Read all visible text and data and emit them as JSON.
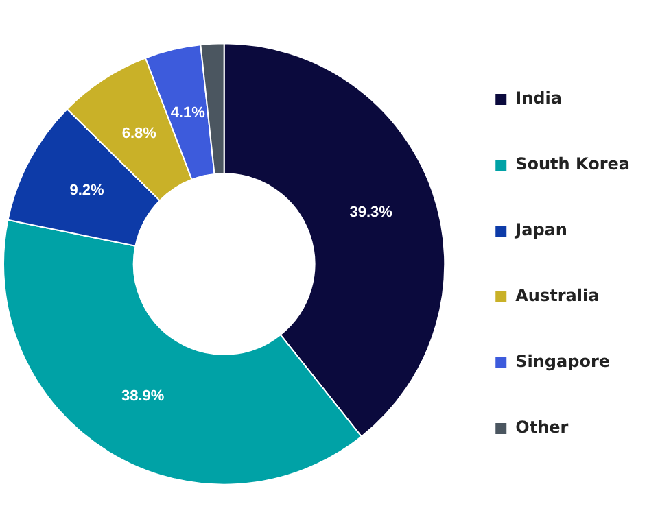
{
  "chart_data": {
    "type": "donut",
    "categories": [
      "India",
      "South Korea",
      "Japan",
      "Australia",
      "Singapore",
      "Other"
    ],
    "values": [
      39.3,
      38.9,
      9.2,
      6.8,
      4.1,
      1.7
    ],
    "value_labels": [
      "39.3%",
      "38.9%",
      "9.2%",
      "6.8%",
      "4.1%",
      null
    ],
    "colors": [
      "#0b0a3d",
      "#00a2a6",
      "#0d3ba8",
      "#c9b128",
      "#3d5bdc",
      "#4b5660"
    ],
    "legend": "right"
  }
}
